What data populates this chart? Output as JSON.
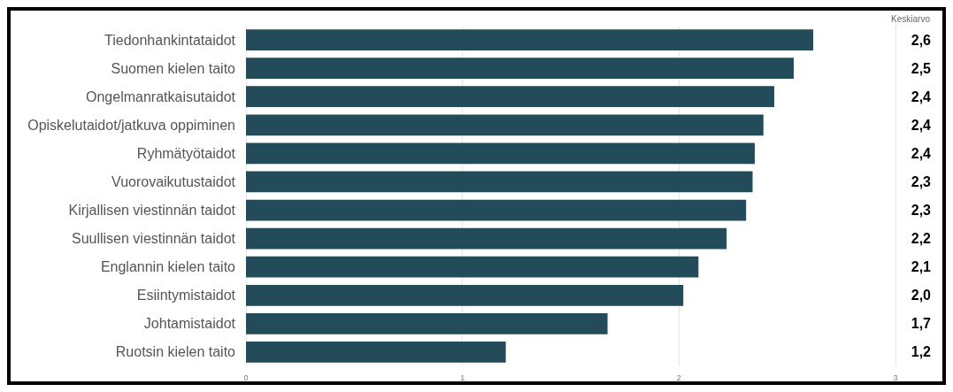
{
  "chart_data": {
    "type": "bar",
    "orientation": "horizontal",
    "categories": [
      "Tiedonhankintataidot",
      "Suomen kielen taito",
      "Ongelmanratkaisutaidot",
      "Opiskelutaidot/jatkuva oppiminen",
      "Ryhmätyötaidot",
      "Vuorovaikutustaidot",
      "Kirjallisen viestinnän taidot",
      "Suullisen viestinnän taidot",
      "Englannin kielen taito",
      "Esiintymistaidot",
      "Johtamistaidot",
      "Ruotsin kielen taito"
    ],
    "values": [
      2.62,
      2.53,
      2.44,
      2.39,
      2.35,
      2.34,
      2.31,
      2.22,
      2.09,
      2.02,
      1.67,
      1.2
    ],
    "value_labels": [
      "2,6",
      "2,5",
      "2,4",
      "2,4",
      "2,4",
      "2,3",
      "2,3",
      "2,2",
      "2,1",
      "2,0",
      "1,7",
      "1,2"
    ],
    "color": "#234b5a",
    "xlim": [
      0,
      3
    ],
    "xticks": [
      0,
      1,
      2,
      3
    ],
    "grid": "x",
    "annotations": [
      "Keskiarvo"
    ]
  }
}
